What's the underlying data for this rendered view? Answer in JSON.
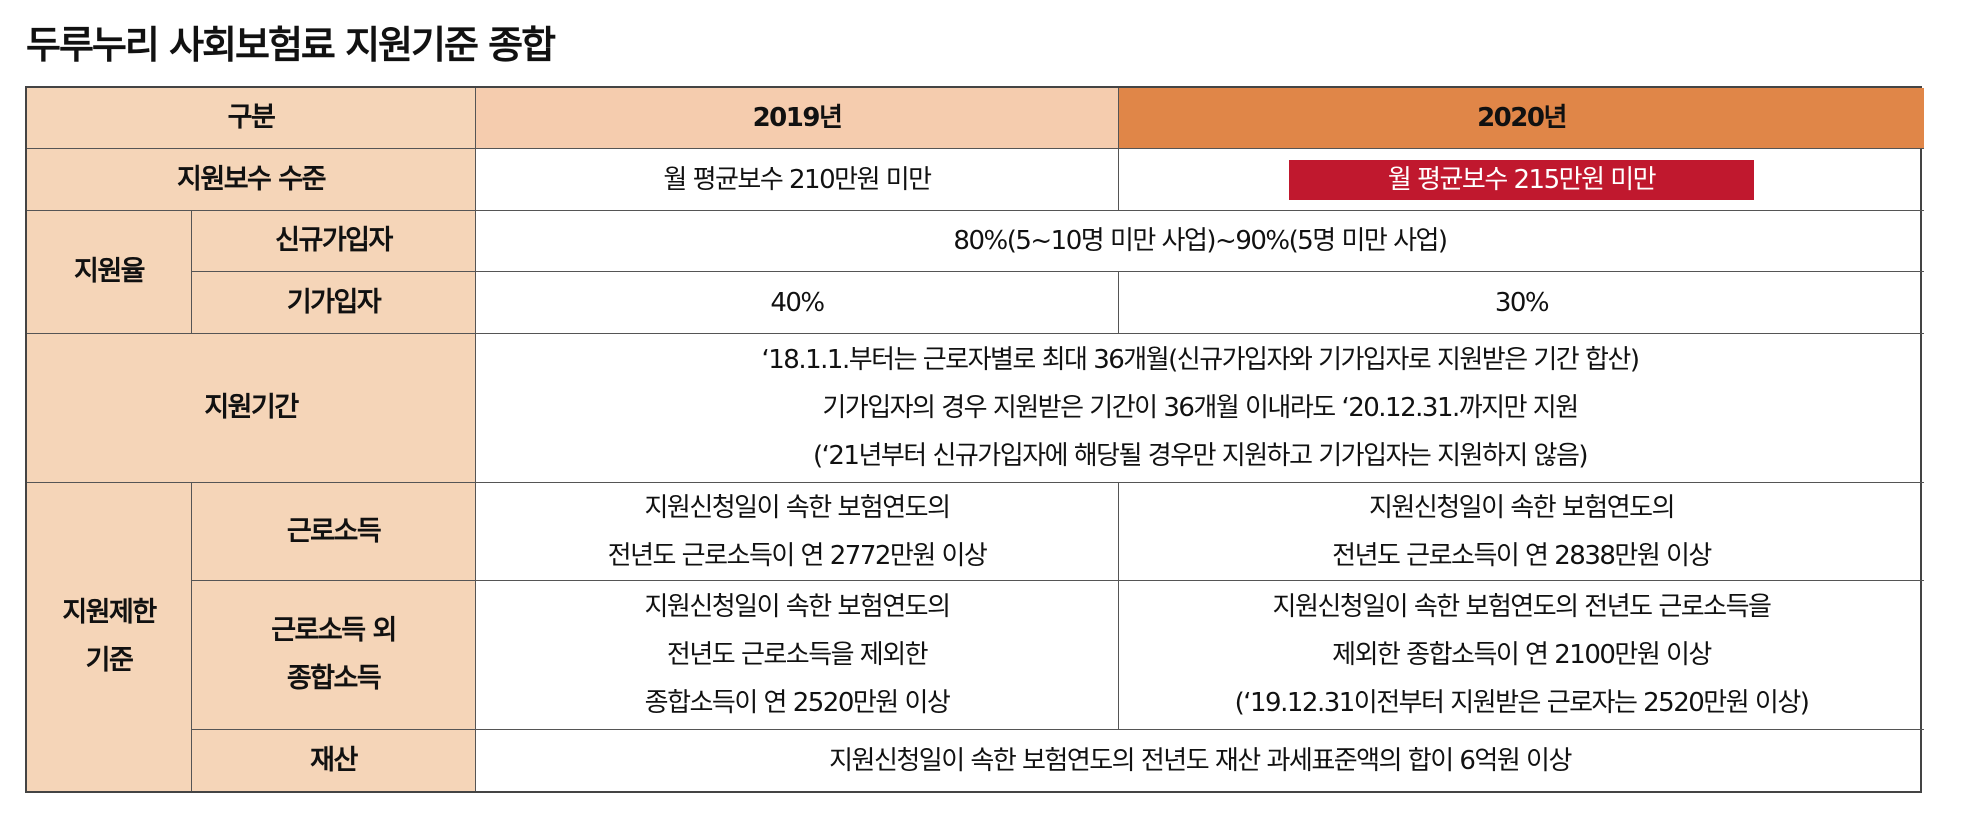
{
  "title": "두루누리 사회보험료 지원기준 종합",
  "colors": {
    "label_bg": "#f5d5b8",
    "header_2019": "#f5ccae",
    "header_2020": "#e08648",
    "highlight": "#c0182e"
  },
  "header": {
    "category": "구분",
    "y2019": "2019년",
    "y2020": "2020년"
  },
  "wage_level": {
    "label": "지원보수 수준",
    "y2019": "월 평균보수 210만원 미만",
    "y2020": "월 평균보수 215만원 미만"
  },
  "support_rate": {
    "label": "지원율",
    "new": {
      "label": "신규가입자",
      "value": "80%(5~10명 미만 사업)~90%(5명 미만 사업)"
    },
    "existing": {
      "label": "기가입자",
      "y2019": "40%",
      "y2020": "30%"
    }
  },
  "period": {
    "label": "지원기간",
    "lines": [
      "‘18.1.1.부터는 근로자별로 최대 36개월(신규가입자와 기가입자로 지원받은 기간 합산)",
      "기가입자의 경우 지원받은 기간이 36개월 이내라도 ‘20.12.31.까지만 지원",
      "(‘21년부터 신규가입자에 해당될 경우만 지원하고 기가입자는 지원하지 않음)"
    ]
  },
  "limits": {
    "label_lines": [
      "지원제한",
      "기준"
    ],
    "earned": {
      "label": "근로소득",
      "y2019": [
        "지원신청일이 속한 보험연도의",
        "전년도 근로소득이 연 2772만원 이상"
      ],
      "y2020": [
        "지원신청일이 속한 보험연도의",
        "전년도 근로소득이 연 2838만원 이상"
      ]
    },
    "other": {
      "label_lines": [
        "근로소득 외",
        "종합소득"
      ],
      "y2019": [
        "지원신청일이 속한 보험연도의",
        "전년도 근로소득을 제외한",
        "종합소득이 연 2520만원 이상"
      ],
      "y2020": [
        "지원신청일이 속한 보험연도의 전년도 근로소득을",
        "제외한 종합소득이 연 2100만원 이상",
        "(‘19.12.31이전부터 지원받은 근로자는 2520만원 이상)"
      ]
    },
    "property": {
      "label": "재산",
      "value": "지원신청일이 속한 보험연도의 전년도 재산 과세표준액의 합이 6억원 이상"
    }
  }
}
